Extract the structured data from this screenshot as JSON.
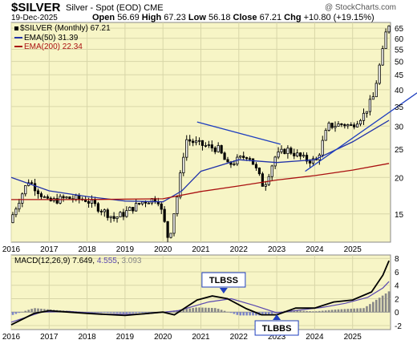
{
  "header": {
    "symbol": "$SILVER",
    "description": "Silver - Spot (EOD)",
    "exchange": "CME",
    "credit": "@ StockCharts.com",
    "date": "19-Dec-2025",
    "stats": {
      "open_label": "Open",
      "open": "56.69",
      "high_label": "High",
      "high": "67.23",
      "low_label": "Low",
      "low": "56.18",
      "close_label": "Close",
      "close": "67.21",
      "chg_label": "Chg",
      "chg": "+10.80 (+19.15%)"
    }
  },
  "legend": {
    "price": "$SILVER (Monthly) 67.21",
    "ema50": "EMA(50) 31.39",
    "ema200": "EMA(200) 22.34"
  },
  "colors": {
    "panel_bg": "#f7f5c6",
    "ema50": "#2233aa",
    "ema200": "#aa1111",
    "trendline": "#1f3fbf",
    "candle": "#000000",
    "histogram": "#888888",
    "macd_line": "#000000",
    "signal_line": "#5a48b0"
  },
  "chart_data": [
    {
      "type": "candlestick",
      "title": "$SILVER (Monthly)",
      "scale": "log",
      "ylim": [
        12,
        68
      ],
      "yticks": [
        15,
        20,
        25,
        30,
        35,
        40,
        45,
        50,
        55,
        60,
        65
      ],
      "x_tick_labels": [
        "2016",
        "2017",
        "2018",
        "2019",
        "2020",
        "2021",
        "2022",
        "2023",
        "2024",
        "2025"
      ],
      "x_range": [
        2016.0,
        2026.0
      ],
      "grid": true,
      "series": [
        {
          "name": "$SILVER (Monthly)",
          "type": "candlestick",
          "anchors": [
            [
              2016.0,
              14.0
            ],
            [
              2016.5,
              19.5
            ],
            [
              2017.0,
              16.5
            ],
            [
              2017.5,
              17.0
            ],
            [
              2018.0,
              16.8
            ],
            [
              2018.75,
              14.5
            ],
            [
              2019.0,
              15.0
            ],
            [
              2019.5,
              16.5
            ],
            [
              2019.9,
              17.0
            ],
            [
              2020.2,
              12.0
            ],
            [
              2020.45,
              18.0
            ],
            [
              2020.65,
              27.0
            ],
            [
              2021.0,
              26.0
            ],
            [
              2021.5,
              25.0
            ],
            [
              2021.75,
              22.0
            ],
            [
              2022.3,
              24.0
            ],
            [
              2022.7,
              18.5
            ],
            [
              2023.0,
              23.5
            ],
            [
              2023.3,
              25.0
            ],
            [
              2023.8,
              23.0
            ],
            [
              2024.1,
              22.8
            ],
            [
              2024.4,
              30.0
            ],
            [
              2024.8,
              30.5
            ],
            [
              2025.0,
              30.0
            ],
            [
              2025.35,
              33.0
            ],
            [
              2025.6,
              38.0
            ],
            [
              2025.85,
              55.0
            ],
            [
              2025.96,
              67.21
            ]
          ]
        },
        {
          "name": "EMA(50)",
          "type": "line",
          "points": [
            [
              2016.0,
              20.0
            ],
            [
              2017.0,
              18.0
            ],
            [
              2018.0,
              17.2
            ],
            [
              2019.0,
              16.6
            ],
            [
              2020.0,
              16.5
            ],
            [
              2020.5,
              18.0
            ],
            [
              2021.0,
              21.0
            ],
            [
              2022.0,
              23.0
            ],
            [
              2023.0,
              22.5
            ],
            [
              2024.0,
              23.0
            ],
            [
              2025.0,
              26.5
            ],
            [
              2025.96,
              31.39
            ]
          ]
        },
        {
          "name": "EMA(200)",
          "type": "line",
          "points": [
            [
              2016.0,
              16.8
            ],
            [
              2018.0,
              16.8
            ],
            [
              2020.0,
              16.9
            ],
            [
              2021.0,
              17.9
            ],
            [
              2022.0,
              18.7
            ],
            [
              2023.0,
              19.6
            ],
            [
              2024.0,
              20.3
            ],
            [
              2025.0,
              21.2
            ],
            [
              2025.96,
              22.34
            ]
          ]
        },
        {
          "name": "Trendline 1",
          "type": "line",
          "points": [
            [
              2020.9,
              31.0
            ],
            [
              2023.1,
              26.0
            ]
          ]
        },
        {
          "name": "Trendline 2",
          "type": "line",
          "points": [
            [
              2023.75,
              21.0
            ],
            [
              2026.7,
              39.0
            ]
          ]
        }
      ]
    },
    {
      "type": "line",
      "title": "MACD(12,26,9)",
      "legend_values": [
        "7.649",
        "4.555",
        "3.093"
      ],
      "ylim": [
        -2.6,
        8.5
      ],
      "yticks": [
        -2,
        0,
        2,
        4,
        6,
        8
      ],
      "x_tick_labels": [
        "2016",
        "2017",
        "2018",
        "2019",
        "2020",
        "2021",
        "2022",
        "2023",
        "2024",
        "2025"
      ],
      "x_range": [
        2016.0,
        2026.0
      ],
      "annotations": [
        {
          "text": "TLBSS",
          "x": 2021.6,
          "marker": "down"
        },
        {
          "text": "TLBBS",
          "x": 2023.0,
          "marker": "up"
        }
      ],
      "series": [
        {
          "name": "MACD",
          "points": [
            [
              2016.0,
              -1.9
            ],
            [
              2016.6,
              -0.2
            ],
            [
              2017.0,
              0.2
            ],
            [
              2017.5,
              0.0
            ],
            [
              2018.0,
              -0.2
            ],
            [
              2019.0,
              -0.5
            ],
            [
              2020.0,
              0.0
            ],
            [
              2020.3,
              -0.4
            ],
            [
              2020.9,
              1.8
            ],
            [
              2021.3,
              2.4
            ],
            [
              2021.7,
              2.0
            ],
            [
              2022.2,
              0.5
            ],
            [
              2022.6,
              -0.4
            ],
            [
              2023.0,
              -0.4
            ],
            [
              2023.5,
              0.6
            ],
            [
              2024.0,
              0.6
            ],
            [
              2024.5,
              1.5
            ],
            [
              2025.0,
              1.8
            ],
            [
              2025.5,
              3.0
            ],
            [
              2025.8,
              5.5
            ],
            [
              2025.96,
              7.649
            ]
          ]
        },
        {
          "name": "Signal",
          "points": [
            [
              2016.0,
              -1.5
            ],
            [
              2016.8,
              0.0
            ],
            [
              2017.5,
              0.1
            ],
            [
              2018.5,
              -0.3
            ],
            [
              2019.5,
              -0.3
            ],
            [
              2020.4,
              0.2
            ],
            [
              2021.2,
              1.5
            ],
            [
              2021.8,
              2.0
            ],
            [
              2022.4,
              1.0
            ],
            [
              2023.0,
              -0.1
            ],
            [
              2023.6,
              0.3
            ],
            [
              2024.2,
              0.7
            ],
            [
              2024.8,
              1.3
            ],
            [
              2025.4,
              2.2
            ],
            [
              2025.8,
              3.6
            ],
            [
              2025.96,
              4.555
            ]
          ]
        },
        {
          "name": "Histogram",
          "type": "bar",
          "points": [
            [
              2016.0,
              -0.5
            ],
            [
              2016.6,
              0.6
            ],
            [
              2017.2,
              0.3
            ],
            [
              2018.0,
              0.0
            ],
            [
              2019.0,
              -0.2
            ],
            [
              2020.0,
              0.0
            ],
            [
              2020.9,
              0.7
            ],
            [
              2021.4,
              0.6
            ],
            [
              2022.0,
              -0.5
            ],
            [
              2022.7,
              -0.5
            ],
            [
              2023.3,
              0.3
            ],
            [
              2024.0,
              0.1
            ],
            [
              2024.6,
              0.4
            ],
            [
              2025.3,
              0.6
            ],
            [
              2025.96,
              3.093
            ]
          ]
        }
      ]
    }
  ]
}
